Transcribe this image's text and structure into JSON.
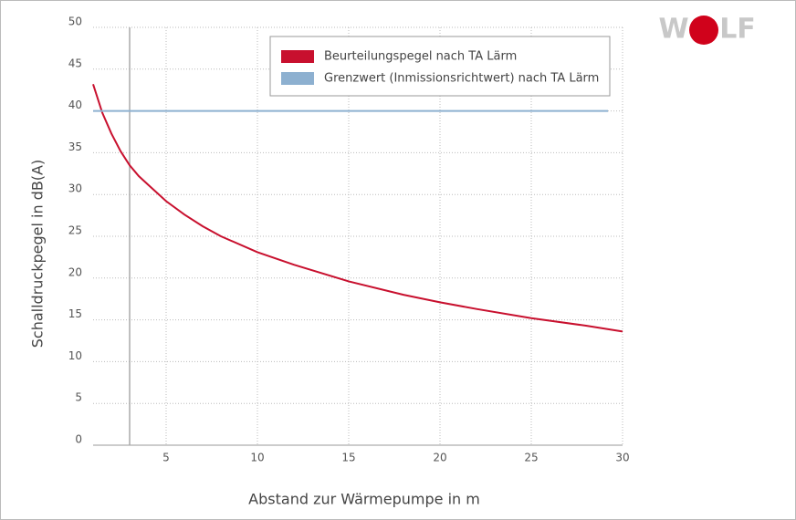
{
  "chart_data": {
    "type": "line",
    "xlabel": "Abstand zur Wärmepumpe in m",
    "ylabel": "Schalldruckpegel in dB(A)",
    "logo": {
      "left": "W",
      "right": "LF"
    },
    "xlim": [
      1,
      30
    ],
    "xticks": [
      5,
      10,
      15,
      20,
      25,
      30
    ],
    "ylim": [
      0,
      50
    ],
    "yticks": [
      0,
      5,
      10,
      15,
      20,
      25,
      30,
      35,
      40,
      45,
      50
    ],
    "grid": true,
    "vline_x": 3,
    "series": [
      {
        "name": "Beurteilungspegel nach TA Lärm",
        "color": "#c8102e",
        "x": [
          1,
          1.5,
          2,
          2.5,
          3,
          3.5,
          4,
          5,
          6,
          7,
          8,
          10,
          12,
          15,
          18,
          20,
          22,
          25,
          28,
          30
        ],
        "values": [
          43.2,
          39.8,
          37.3,
          35.2,
          33.5,
          32.2,
          31.2,
          29.2,
          27.6,
          26.2,
          25.0,
          23.1,
          21.6,
          19.6,
          18.0,
          17.1,
          16.3,
          15.2,
          14.3,
          13.6
        ]
      },
      {
        "name": "Grenzwert (Inmissionsrichtwert) nach TA Lärm",
        "color": "#8db0d0",
        "x": [
          1,
          29.2
        ],
        "values": [
          40,
          40
        ]
      }
    ],
    "legend": "top-right"
  }
}
